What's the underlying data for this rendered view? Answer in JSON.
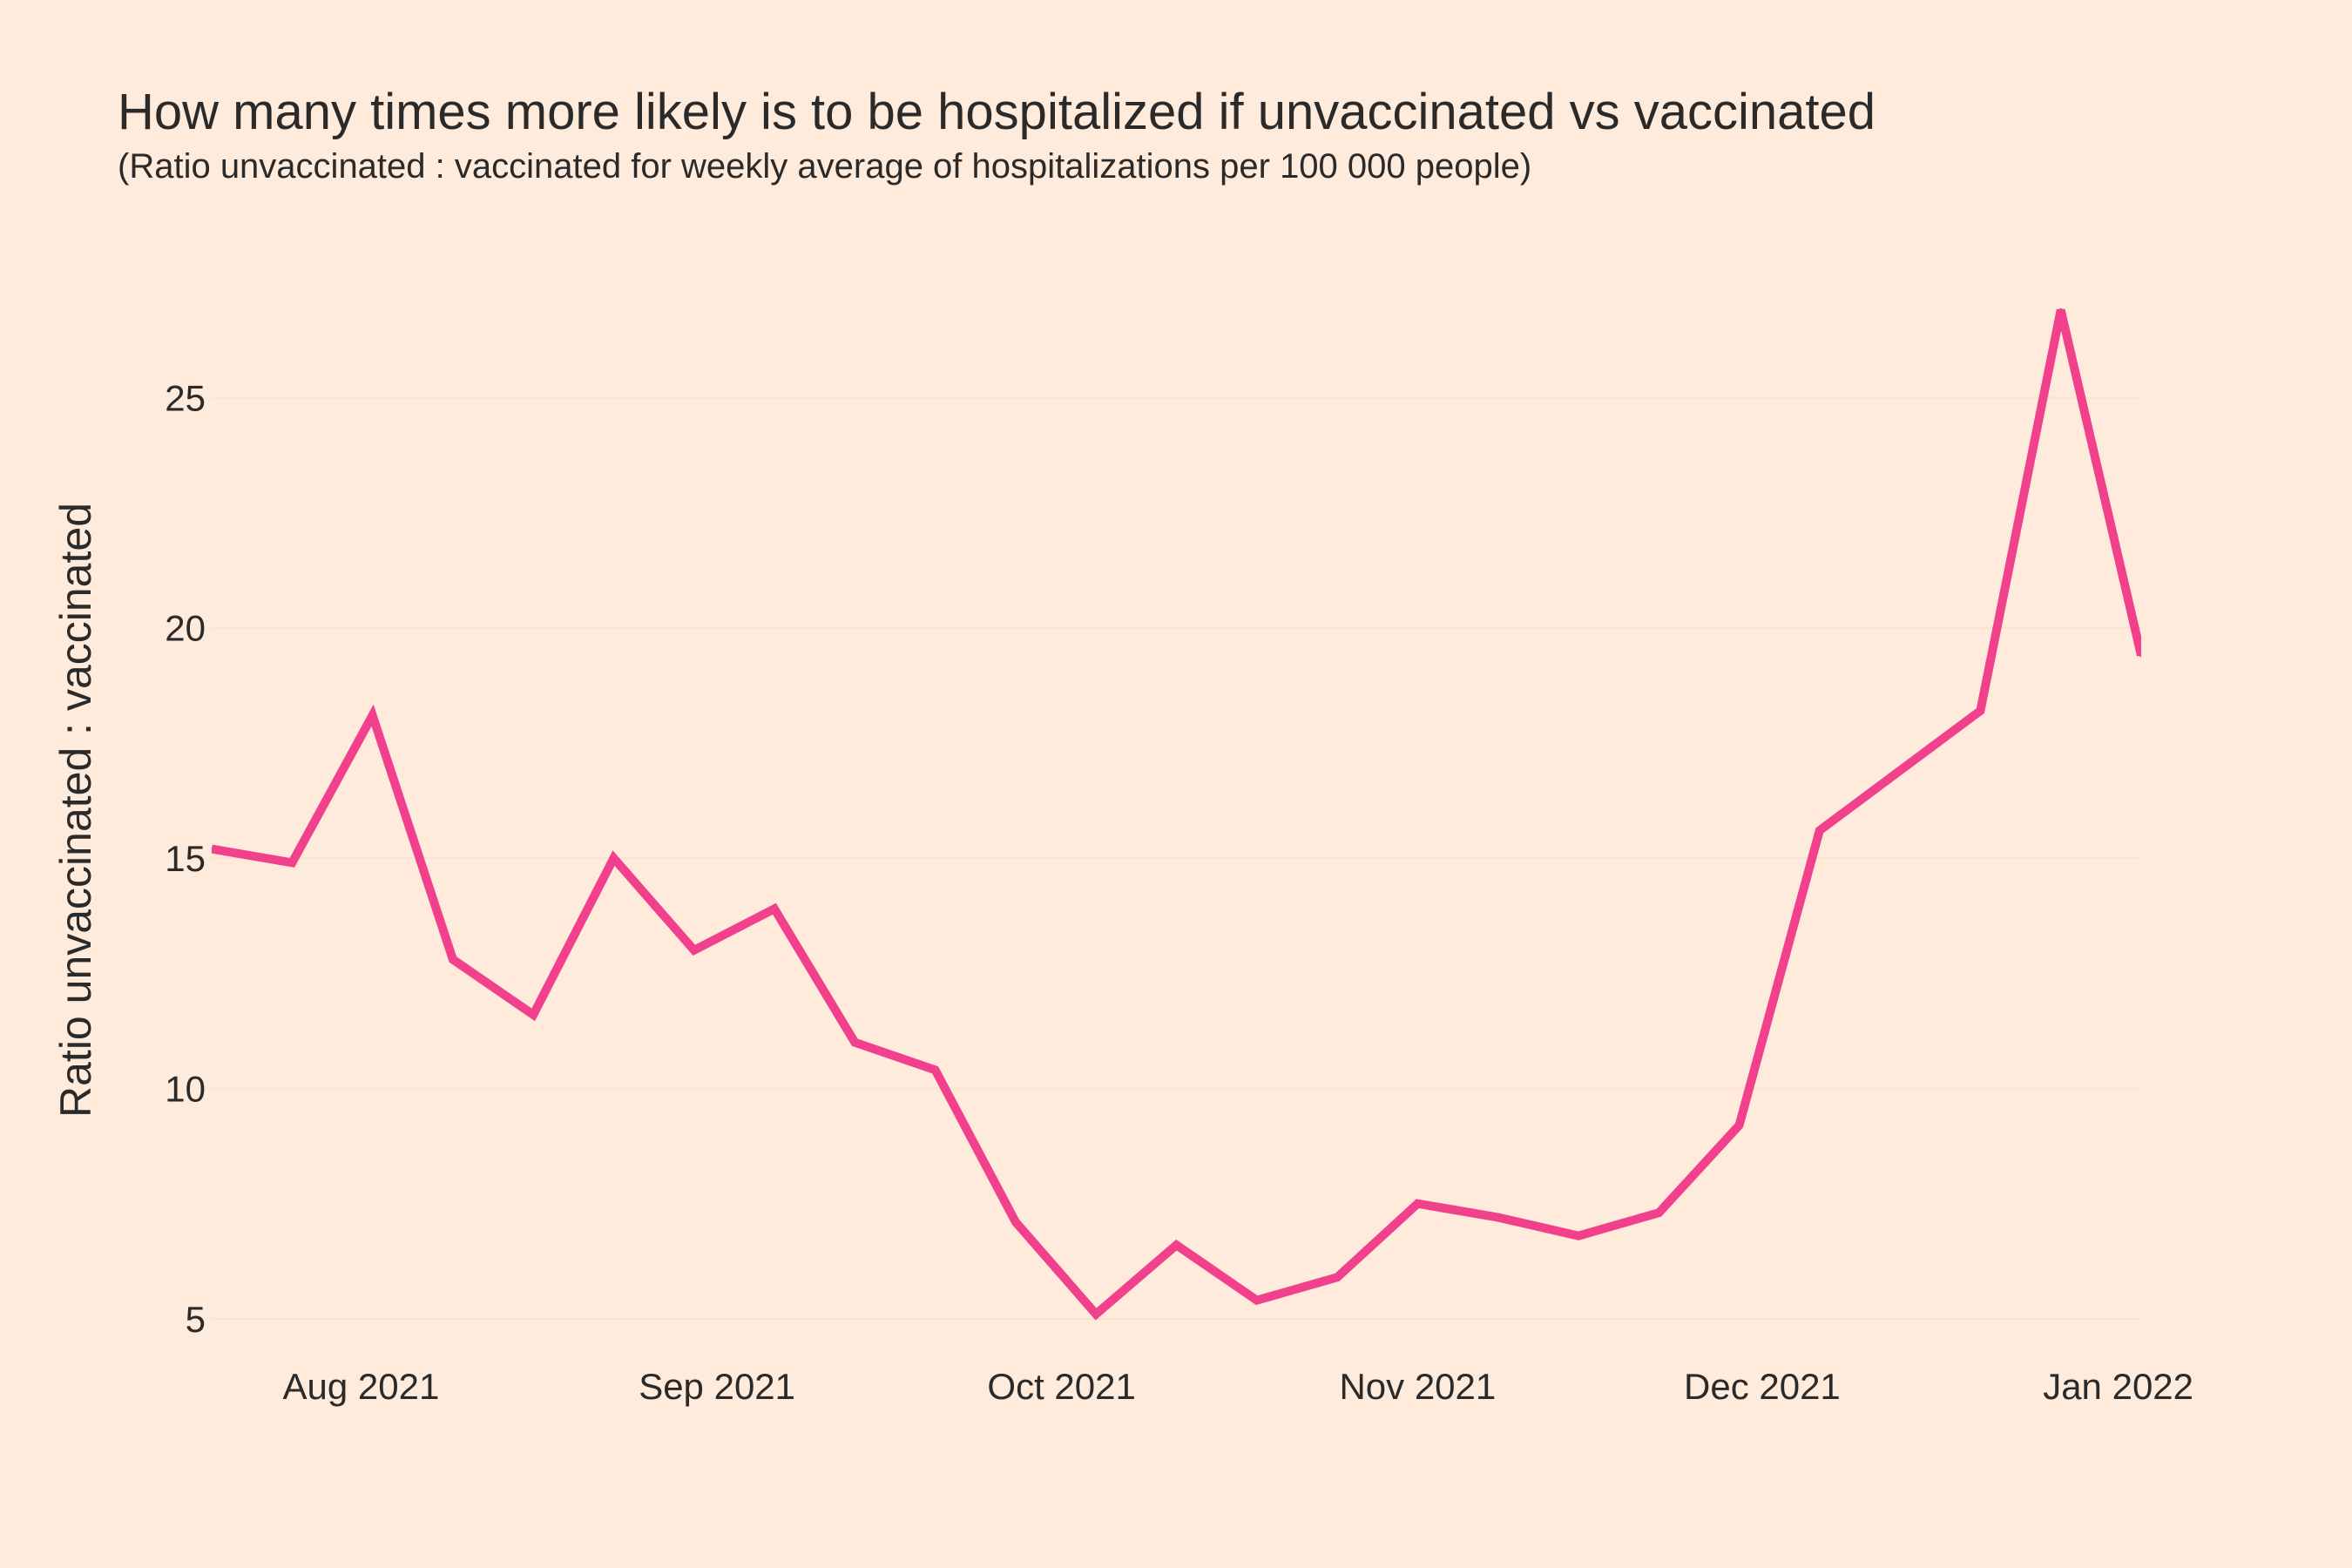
{
  "chart_data": {
    "type": "line",
    "title": "How many times more likely is to be hospitalized if unvaccinated vs vaccinated",
    "subtitle": "(Ratio unvaccinated : vaccinated for weekly average of hospitalizations per 100 000 people)",
    "xlabel": "",
    "ylabel": "Ratio unvaccinated : vaccinated",
    "x": [
      "2021-07-19",
      "2021-07-26",
      "2021-08-02",
      "2021-08-09",
      "2021-08-16",
      "2021-08-23",
      "2021-08-30",
      "2021-09-06",
      "2021-09-13",
      "2021-09-20",
      "2021-09-27",
      "2021-10-04",
      "2021-10-11",
      "2021-10-18",
      "2021-10-25",
      "2021-11-01",
      "2021-11-08",
      "2021-11-15",
      "2021-11-22",
      "2021-11-29",
      "2021-12-06",
      "2021-12-13",
      "2021-12-20",
      "2021-12-27",
      "2022-01-03"
    ],
    "series": [
      {
        "name": "",
        "color": "#f2418c",
        "values": [
          15.2,
          14.9,
          18.1,
          12.8,
          11.6,
          15.0,
          13.0,
          13.9,
          11.0,
          10.4,
          7.1,
          5.1,
          6.6,
          5.4,
          5.9,
          7.5,
          7.2,
          6.8,
          7.3,
          9.2,
          15.6,
          16.9,
          18.2,
          26.9,
          19.4
        ]
      }
    ],
    "x_ticks": [
      {
        "date": "2021-08-01",
        "label": "Aug 2021"
      },
      {
        "date": "2021-09-01",
        "label": "Sep 2021"
      },
      {
        "date": "2021-10-01",
        "label": "Oct 2021"
      },
      {
        "date": "2021-11-01",
        "label": "Nov 2021"
      },
      {
        "date": "2021-12-01",
        "label": "Dec 2021"
      },
      {
        "date": "2022-01-01",
        "label": "Jan 2022"
      }
    ],
    "y_ticks": [
      5,
      10,
      15,
      20,
      25
    ],
    "xlim": [
      "2021-07-19",
      "2022-01-03"
    ],
    "ylim": [
      4.6,
      27.2
    ],
    "grid": "horizontal",
    "background": "#ffebdc",
    "legend": "none"
  }
}
